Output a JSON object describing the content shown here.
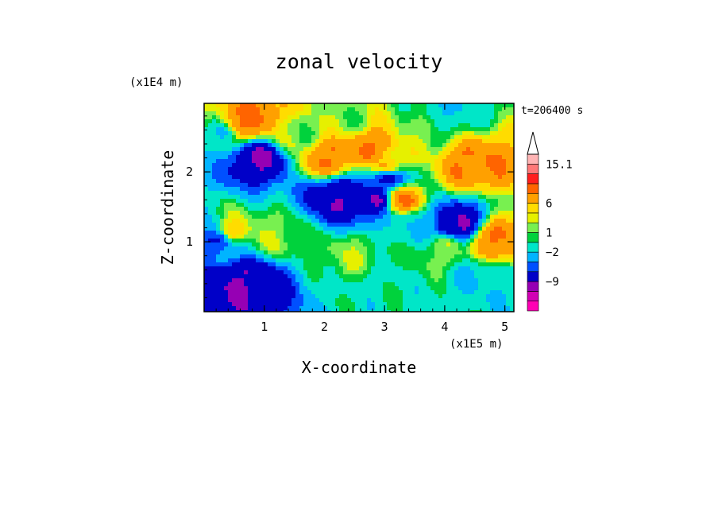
{
  "chart_data": {
    "type": "heatmap",
    "title": "zonal velocity",
    "xlabel": "X-coordinate",
    "ylabel": "Z-coordinate",
    "x_scale_note": "(x1E5 m)",
    "y_scale_note": "(x1E4 m)",
    "time_label": "t=206400 s",
    "xlim": [
      0,
      5.15
    ],
    "ylim": [
      0,
      2.98
    ],
    "x_ticks": [
      "1",
      "2",
      "3",
      "4",
      "5"
    ],
    "y_ticks": [
      "1",
      "2"
    ],
    "colorbar": {
      "labels": [
        "15.1",
        "6",
        "1",
        "-2",
        "-9"
      ],
      "extend": "max",
      "colors": [
        "#ff00b4",
        "#d200b4",
        "#9600b4",
        "#0000c8",
        "#0050ff",
        "#00b4ff",
        "#00e6c8",
        "#00d23c",
        "#78f050",
        "#e6f000",
        "#ffdc00",
        "#ffa000",
        "#ff6400",
        "#ff1e1e",
        "#ff7878",
        "#ffb4b4"
      ]
    },
    "features": [
      {
        "x": 0.6,
        "z": 2.7,
        "u": 6
      },
      {
        "x": 0.9,
        "z": 2.75,
        "u": 6
      },
      {
        "x": 0.9,
        "z": 2.2,
        "u": -9
      },
      {
        "x": 0.25,
        "z": 2.55,
        "u": -2
      },
      {
        "x": 1.5,
        "z": 2.55,
        "u": 1
      },
      {
        "x": 2.1,
        "z": 2.2,
        "u": 6
      },
      {
        "x": 2.75,
        "z": 2.35,
        "u": 6
      },
      {
        "x": 3.05,
        "z": 2.05,
        "u": 6
      },
      {
        "x": 3.25,
        "z": 1.6,
        "u": 6
      },
      {
        "x": 2.85,
        "z": 1.6,
        "u": -9
      },
      {
        "x": 2.25,
        "z": 1.65,
        "u": -9
      },
      {
        "x": 3.05,
        "z": 1.95,
        "u": -9
      },
      {
        "x": 3.5,
        "z": 1.25,
        "u": -2
      },
      {
        "x": 4.15,
        "z": 1.25,
        "u": -9
      },
      {
        "x": 3.6,
        "z": 2.6,
        "u": 1
      },
      {
        "x": 4.45,
        "z": 2.1,
        "u": 6
      },
      {
        "x": 4.6,
        "z": 0.5,
        "u": -2
      },
      {
        "x": 4.85,
        "z": 1.0,
        "u": 6
      },
      {
        "x": 2.5,
        "z": 0.8,
        "u": 1
      },
      {
        "x": 2.9,
        "z": 0.4,
        "u": -1
      },
      {
        "x": 0.4,
        "z": 1.1,
        "u": 6
      },
      {
        "x": 0.3,
        "z": 1.05,
        "u": -9
      },
      {
        "x": 0.7,
        "z": 0.45,
        "u": -9
      },
      {
        "x": 1.2,
        "z": 1.1,
        "u": 1
      },
      {
        "x": 3.95,
        "z": 0.9,
        "u": 1
      },
      {
        "x": 2.35,
        "z": 2.75,
        "u": 1
      },
      {
        "x": 4.0,
        "z": 2.85,
        "u": -2
      }
    ]
  }
}
